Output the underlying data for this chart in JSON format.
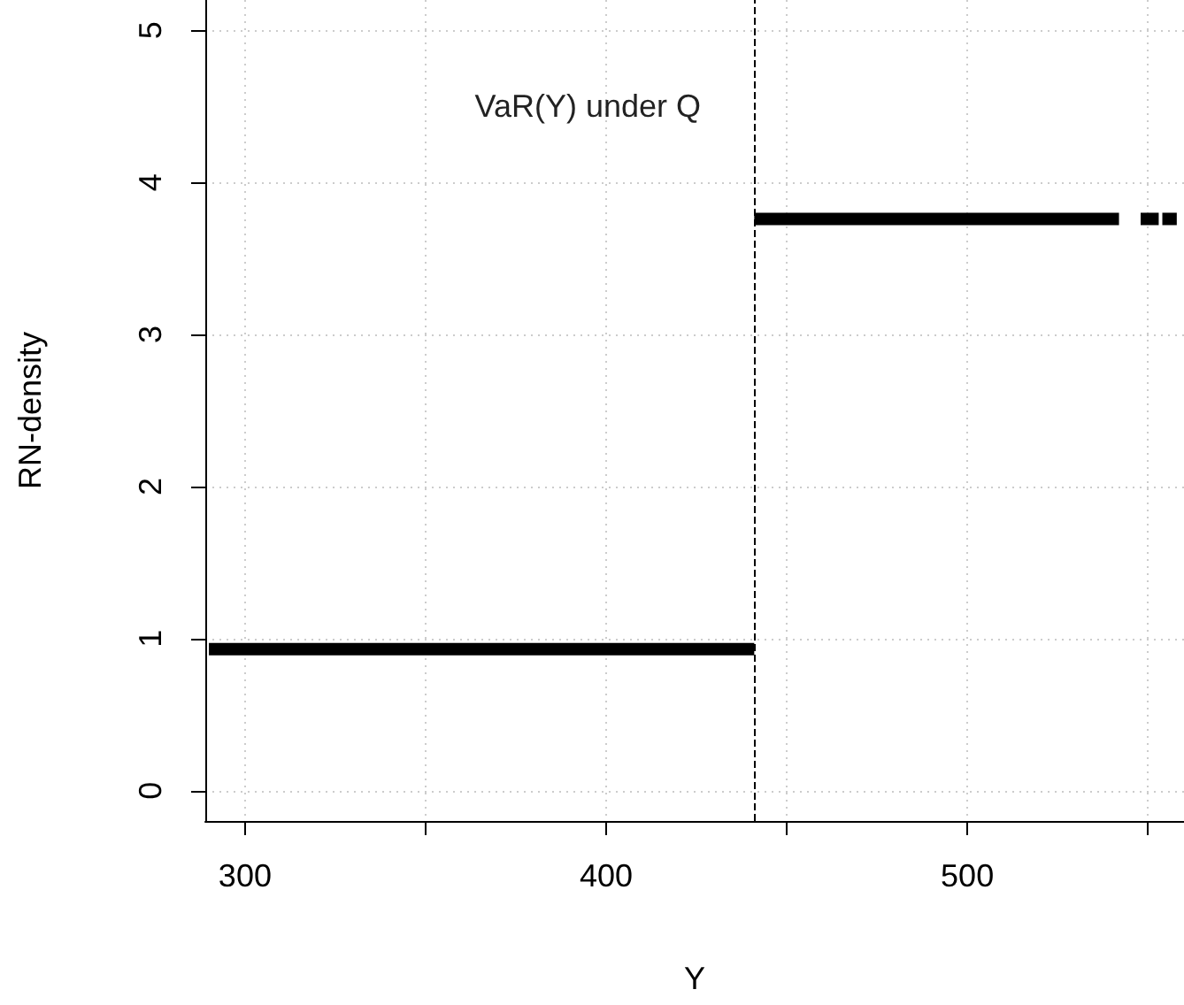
{
  "chart_data": {
    "type": "line",
    "xlabel": "Y",
    "ylabel": "RN-density",
    "series": [
      {
        "color": "#000000",
        "x": [
          290,
          441
        ],
        "values": [
          0.93,
          0.93
        ]
      },
      {
        "color": "#000000",
        "x": [
          441,
          542
        ],
        "values": [
          3.76,
          3.76
        ]
      },
      {
        "color": "#000000",
        "x": [
          548,
          553
        ],
        "values": [
          3.76,
          3.76
        ]
      },
      {
        "color": "#000000",
        "x": [
          554,
          558
        ],
        "values": [
          3.76,
          3.76
        ]
      }
    ],
    "xlim": [
      289,
      560
    ],
    "xticks": [
      300,
      {
        "value": 350,
        "label": null
      },
      400,
      {
        "value": 450,
        "label": null
      },
      500,
      {
        "value": 550,
        "label": null
      }
    ],
    "ylim": [
      -0.2,
      5.2
    ],
    "yticks": [
      0,
      1,
      2,
      3,
      4,
      5
    ],
    "grid": true,
    "marker": "none",
    "line_style": "solid",
    "ref_lines": [
      {
        "axis": "x",
        "value": 441,
        "color": "#000000",
        "line_style": "dashed"
      }
    ],
    "annotations": [
      "VaR(Y) under Q"
    ]
  }
}
